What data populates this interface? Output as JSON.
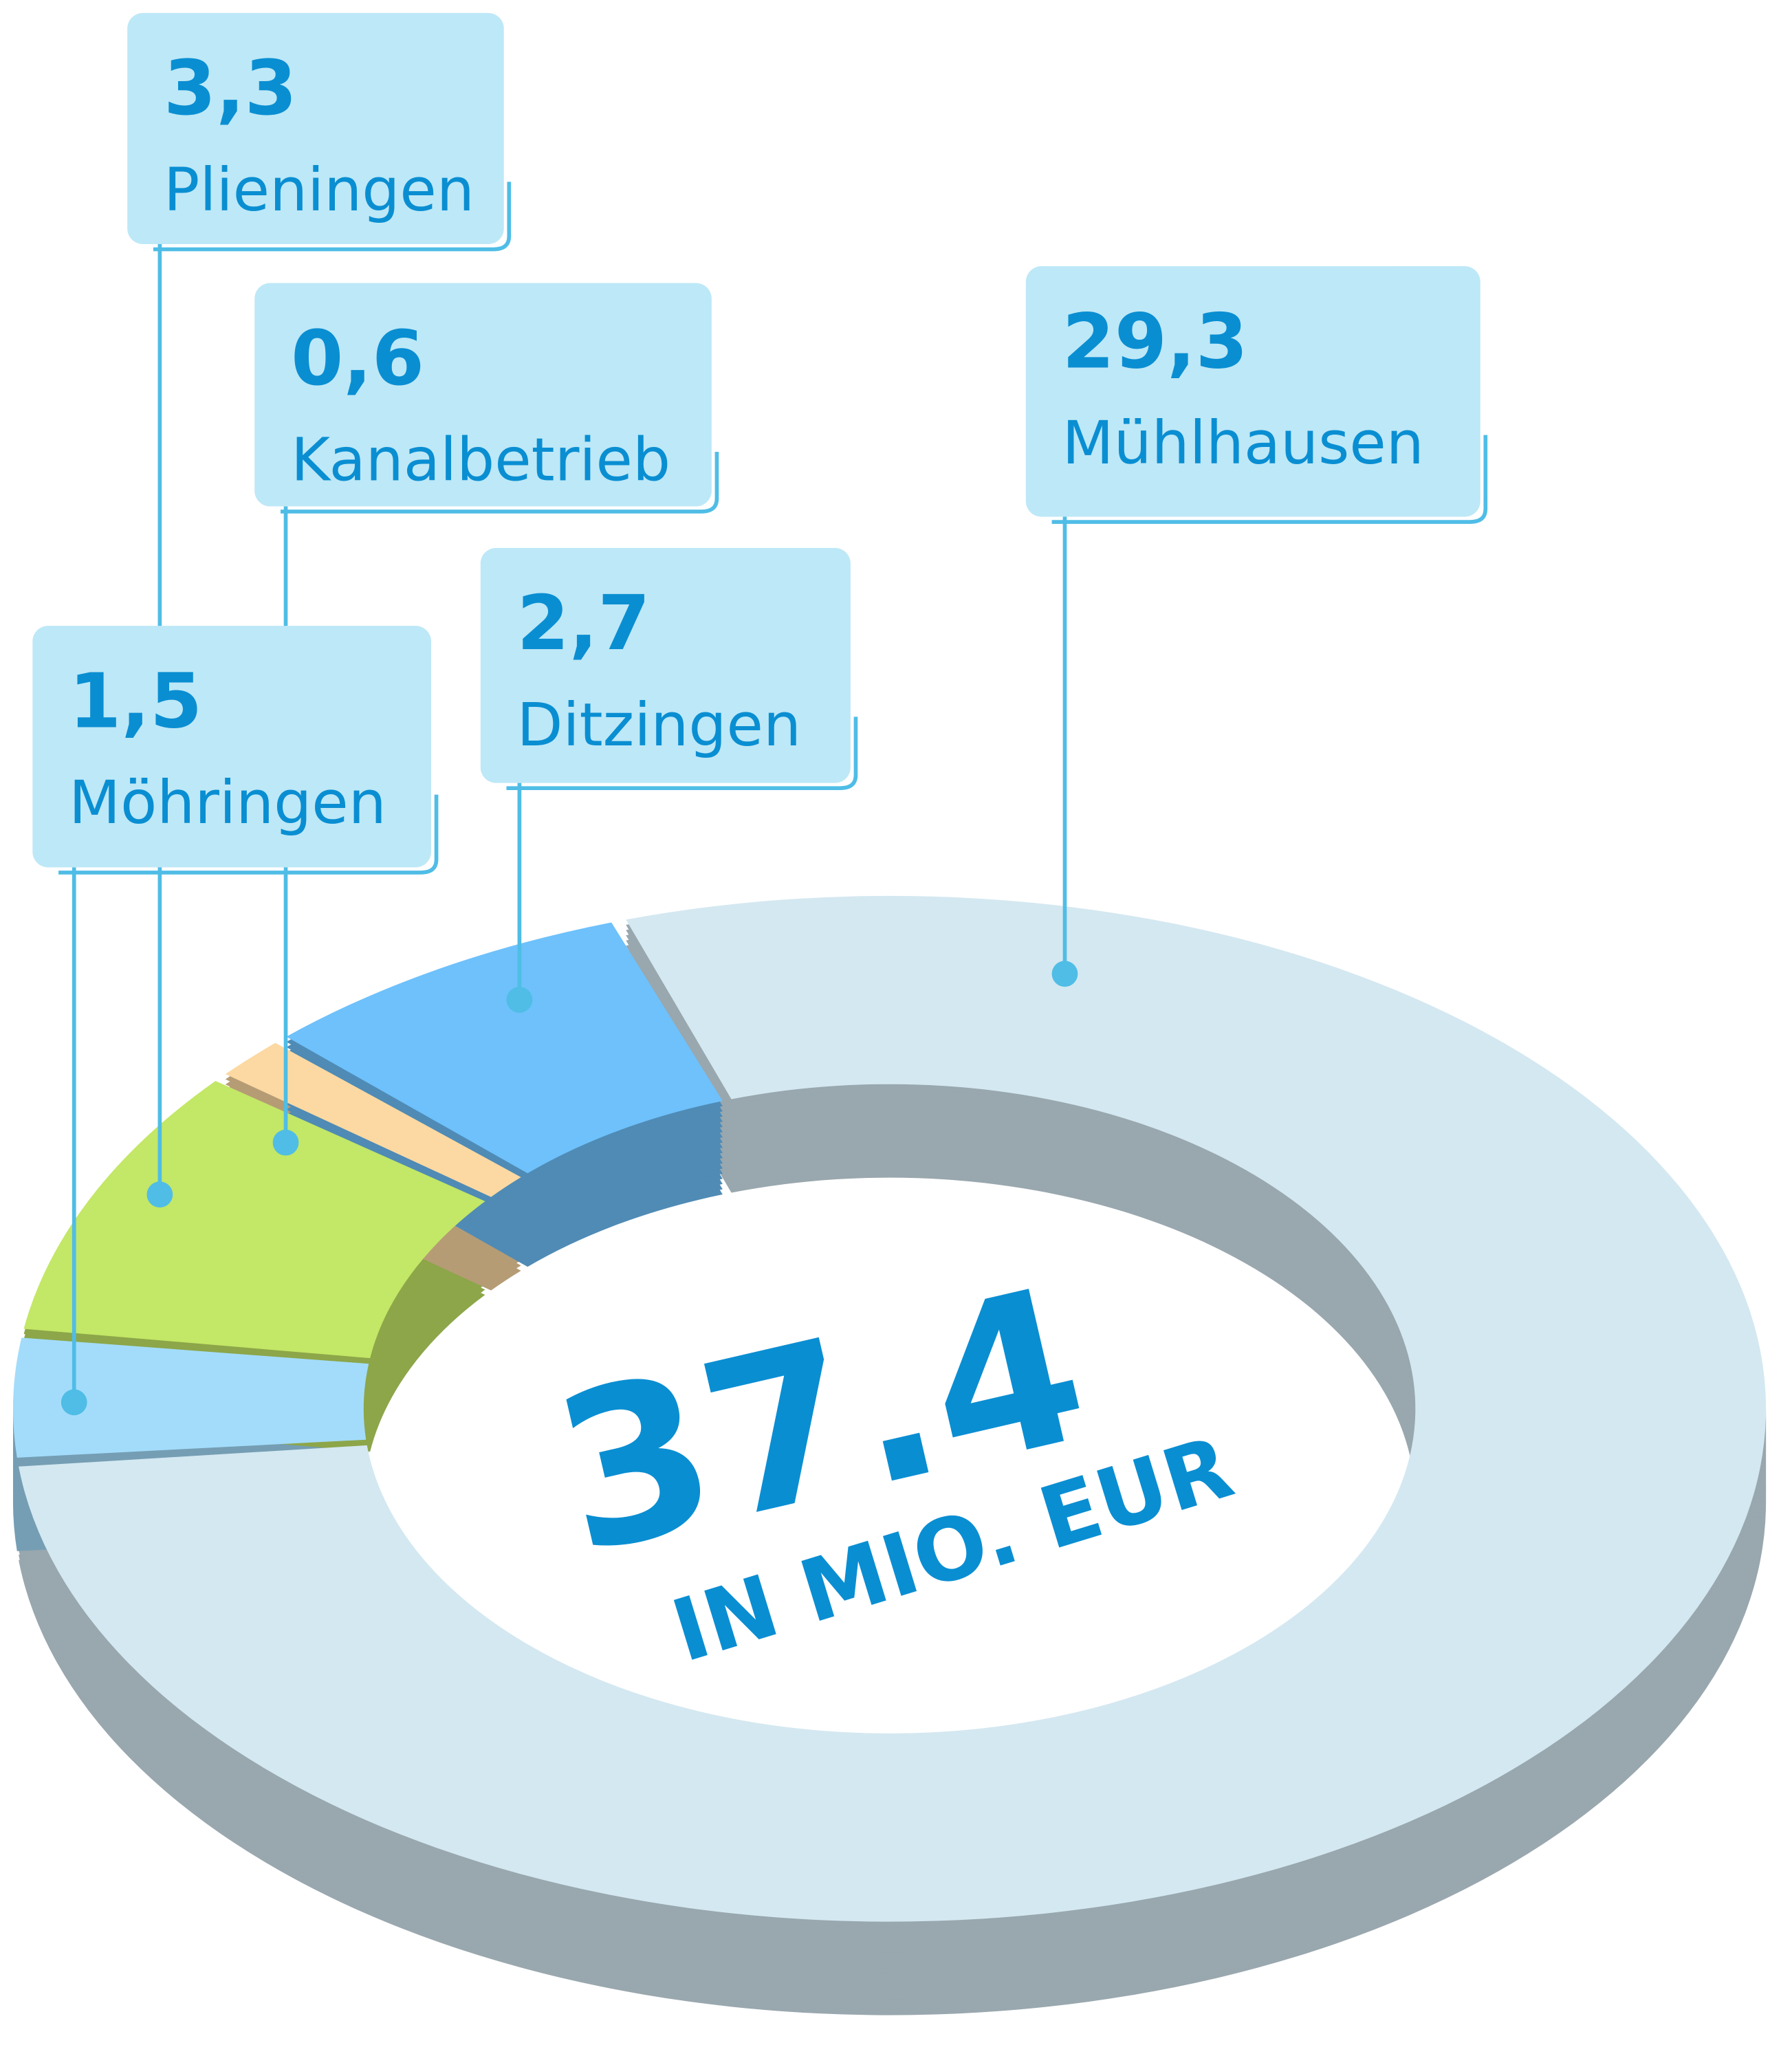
{
  "chart_data": {
    "type": "donut",
    "center_value": "37.4",
    "center_unit": "IN MIO. EUR",
    "categories": [
      "Mühlhausen",
      "Möhringen",
      "Plieningen",
      "Kanalbetrieb",
      "Ditzingen"
    ],
    "values": [
      29.3,
      1.5,
      3.3,
      0.6,
      2.7
    ],
    "value_labels": [
      "29,3",
      "1,5",
      "3,3",
      "0,6",
      "2,7"
    ],
    "colors": [
      "#d4e8f1",
      "#a3dcfa",
      "#c3e766",
      "#fcd9a2",
      "#6ec1fb"
    ]
  }
}
